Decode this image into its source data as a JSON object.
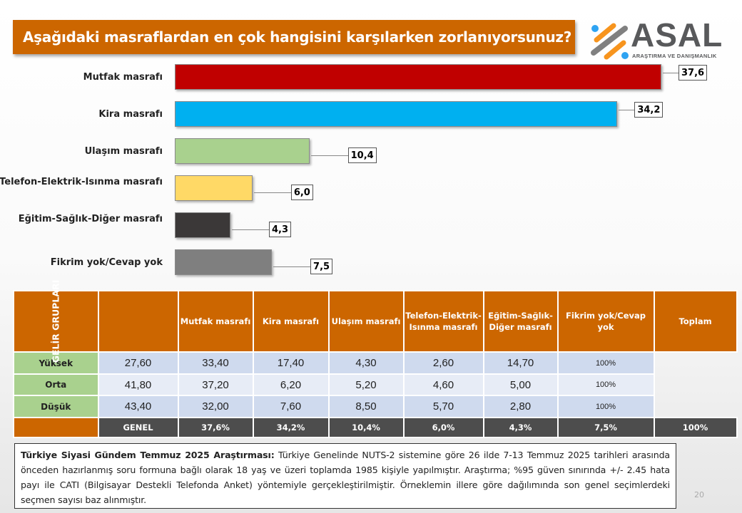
{
  "title": "Aşağıdaki masraflardan en çok hangisini karşılarken zorlanıyorsunuz?",
  "logo": {
    "name": "ASAL",
    "subtitle": "ARAŞTIRMA VE DANIŞMANLIK"
  },
  "chart_data": {
    "type": "bar",
    "orientation": "horizontal",
    "categories": [
      "Mutfak masrafı",
      "Kira masrafı",
      "Ulaşım masrafı",
      "Telefon-Elektrik-Isınma masrafı",
      "Eğitim-Sağlık-Diğer masrafı",
      "Fikrim yok/Cevap yok"
    ],
    "values": [
      37.6,
      34.2,
      10.4,
      6.0,
      4.3,
      7.5
    ],
    "labels": [
      "37,6",
      "34,2",
      "10,4",
      "6,0",
      "4,3",
      "7,5"
    ],
    "colors": [
      "#c00000",
      "#00b0f0",
      "#a9d18e",
      "#ffd966",
      "#3b3838",
      "#7f7f7f"
    ],
    "xlim": [
      0,
      40
    ],
    "grid": false
  },
  "table": {
    "group_label": "GELİR GRUPLARI",
    "headers": [
      "Mutfak masrafı",
      "Kira masrafı",
      "Ulaşım masrafı",
      "Telefon-Elektrik-Isınma masrafı",
      "Eğitim-Sağlık-Diğer masrafı",
      "Fikrim yok/Cevap yok",
      "Toplam"
    ],
    "rows": [
      {
        "label": "Yüksek",
        "values": [
          "27,60",
          "33,40",
          "17,40",
          "4,30",
          "2,60",
          "14,70",
          "100%"
        ]
      },
      {
        "label": "Orta",
        "values": [
          "41,80",
          "37,20",
          "6,20",
          "5,20",
          "4,60",
          "5,00",
          "100%"
        ]
      },
      {
        "label": "Düşük",
        "values": [
          "43,40",
          "32,00",
          "7,60",
          "8,50",
          "5,70",
          "2,80",
          "100%"
        ]
      }
    ],
    "total": {
      "label": "GENEL",
      "values": [
        "37,6%",
        "34,2%",
        "10,4%",
        "6,0%",
        "4,3%",
        "7,5%",
        "100%"
      ]
    }
  },
  "footer": {
    "bold": "Türkiye Siyasi Gündem Temmuz 2025 Araştırması:",
    "text": " Türkiye Genelinde NUTS-2 sistemine göre 26 ilde 7-13 Temmuz 2025 tarihleri arasında önceden hazırlanmış soru formuna bağlı olarak 18 yaş ve üzeri toplamda 1985 kişiyle yapılmıştır. Araştırma; %95 güven sınırında +/- 2.45 hata payı ile CATI (Bilgisayar Destekli Telefonda Anket) yöntemiyle gerçekleştirilmiştir. Örneklemin illere göre dağılımında son genel seçimlerdeki seçmen sayısı baz alınmıştır."
  },
  "page_number": "20"
}
